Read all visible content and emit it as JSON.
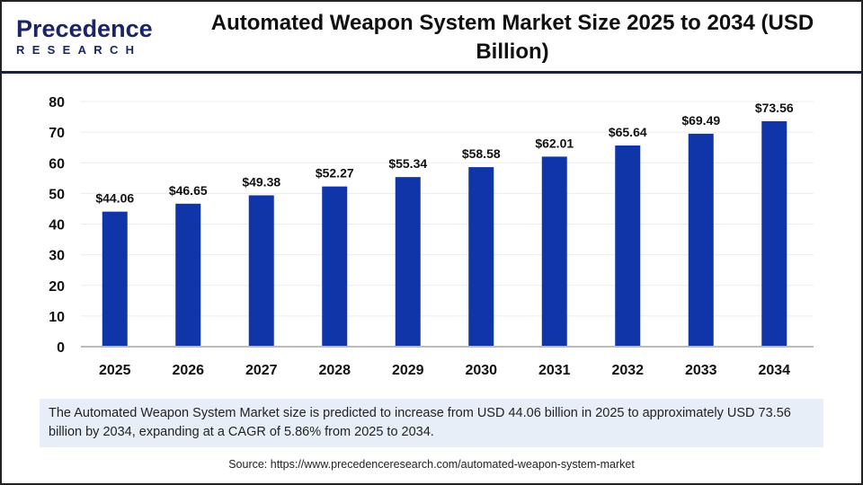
{
  "logo": {
    "line1": "Precedence",
    "line2": "RESEARCH"
  },
  "title": "Automated Weapon System Market Size 2025 to 2034 (USD Billion)",
  "chart_data": {
    "type": "bar",
    "title": "Automated Weapon System Market Size 2025 to 2034 (USD Billion)",
    "categories": [
      "2025",
      "2026",
      "2027",
      "2028",
      "2029",
      "2030",
      "2031",
      "2032",
      "2033",
      "2034"
    ],
    "values": [
      44.06,
      46.65,
      49.38,
      52.27,
      55.34,
      58.58,
      62.01,
      65.64,
      69.49,
      73.56
    ],
    "data_labels": [
      "$44.06",
      "$46.65",
      "$49.38",
      "$52.27",
      "$55.34",
      "$58.58",
      "$62.01",
      "$65.64",
      "$69.49",
      "$73.56"
    ],
    "ylim": [
      0,
      80
    ],
    "yticks": [
      0,
      10,
      20,
      30,
      40,
      50,
      60,
      70,
      80
    ],
    "grid": true,
    "bar_color": "#0f35a8"
  },
  "summary": "The Automated Weapon System Market size is predicted to increase from USD 44.06 billion in 2025 to approximately USD 73.56 billion by 2034, expanding at a CAGR of 5.86% from 2025 to 2034.",
  "source": "Source: https://www.precedenceresearch.com/automated-weapon-system-market"
}
